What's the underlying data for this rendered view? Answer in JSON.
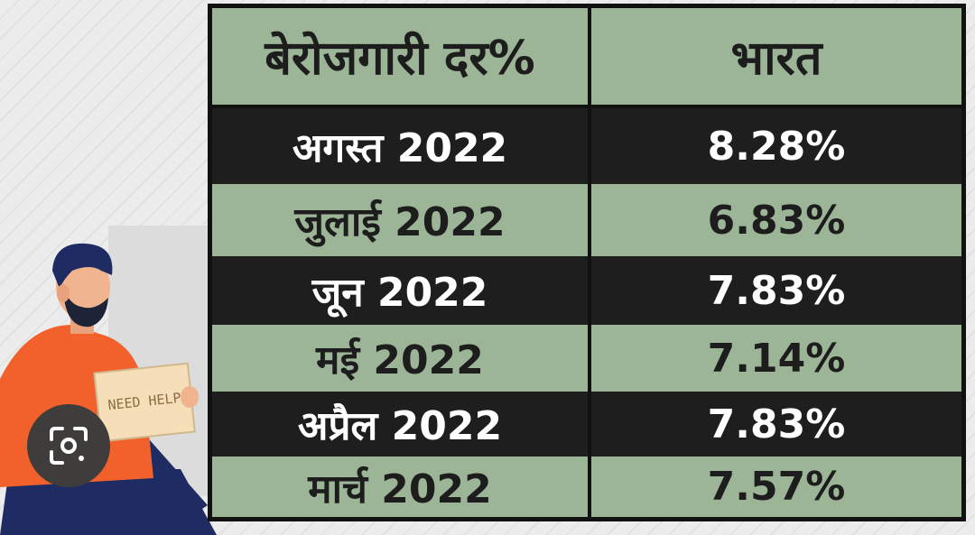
{
  "table": {
    "header": {
      "label_col": "बेरोजगारी दर%",
      "value_col": "भारत"
    },
    "rows": [
      {
        "month": "अगस्त 2022",
        "value": "8.28%"
      },
      {
        "month": "जुलाई 2022",
        "value": "6.83%"
      },
      {
        "month": "जून 2022",
        "value": "7.83%"
      },
      {
        "month": "मई 2022",
        "value": "7.14%"
      },
      {
        "month": "अप्रैल 2022",
        "value": "7.83%"
      },
      {
        "month": "मार्च 2022",
        "value": "7.57%"
      }
    ]
  },
  "illustration": {
    "sign_text": "NEED HELP"
  },
  "colors": {
    "green_row": "#9cb597",
    "dark_row": "#1e1e1e",
    "border": "#111111"
  },
  "chart_data": {
    "type": "table",
    "columns": [
      "बेरोजगारी दर%",
      "भारत"
    ],
    "rows": [
      [
        "अगस्त 2022",
        "8.28%"
      ],
      [
        "जुलाई 2022",
        "6.83%"
      ],
      [
        "जून 2022",
        "7.83%"
      ],
      [
        "मई 2022",
        "7.14%"
      ],
      [
        "अप्रैल 2022",
        "7.83%"
      ],
      [
        "मार्च 2022",
        "7.57%"
      ]
    ],
    "categories": [
      "अगस्त 2022",
      "जुलाई 2022",
      "जून 2022",
      "मई 2022",
      "अप्रैल 2022",
      "मार्च 2022"
    ],
    "values": [
      8.28,
      6.83,
      7.83,
      7.14,
      7.83,
      7.57
    ]
  }
}
